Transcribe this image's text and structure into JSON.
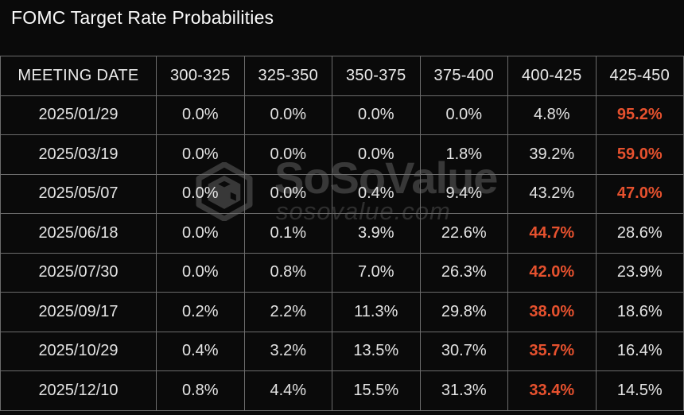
{
  "title": "FOMC Target Rate Probabilities",
  "watermark": {
    "brand": "SoSoValue",
    "domain": "sosovalue.com",
    "logo_icon": "sosovalue-cube-icon"
  },
  "colors": {
    "background": "#0a0a0a",
    "grid_line": "#6c6c6c",
    "text": "#e3e3e3",
    "header_text": "#ececec",
    "highlight": "#e6512e"
  },
  "chart_data": {
    "type": "table",
    "title": "FOMC Target Rate Probabilities",
    "columns": [
      "MEETING DATE",
      "300-325",
      "325-350",
      "350-375",
      "375-400",
      "400-425",
      "425-450"
    ],
    "rows": [
      {
        "date": "2025/01/29",
        "values": [
          "0.0%",
          "0.0%",
          "0.0%",
          "0.0%",
          "4.8%",
          "95.2%"
        ],
        "highlight_index": 5
      },
      {
        "date": "2025/03/19",
        "values": [
          "0.0%",
          "0.0%",
          "0.0%",
          "1.8%",
          "39.2%",
          "59.0%"
        ],
        "highlight_index": 5
      },
      {
        "date": "2025/05/07",
        "values": [
          "0.0%",
          "0.0%",
          "0.4%",
          "9.4%",
          "43.2%",
          "47.0%"
        ],
        "highlight_index": 5
      },
      {
        "date": "2025/06/18",
        "values": [
          "0.0%",
          "0.1%",
          "3.9%",
          "22.6%",
          "44.7%",
          "28.6%"
        ],
        "highlight_index": 4
      },
      {
        "date": "2025/07/30",
        "values": [
          "0.0%",
          "0.8%",
          "7.0%",
          "26.3%",
          "42.0%",
          "23.9%"
        ],
        "highlight_index": 4
      },
      {
        "date": "2025/09/17",
        "values": [
          "0.2%",
          "2.2%",
          "11.3%",
          "29.8%",
          "38.0%",
          "18.6%"
        ],
        "highlight_index": 4
      },
      {
        "date": "2025/10/29",
        "values": [
          "0.4%",
          "3.2%",
          "13.5%",
          "30.7%",
          "35.7%",
          "16.4%"
        ],
        "highlight_index": 4
      },
      {
        "date": "2025/12/10",
        "values": [
          "0.8%",
          "4.4%",
          "15.5%",
          "31.3%",
          "33.4%",
          "14.5%"
        ],
        "highlight_index": 4
      }
    ]
  }
}
